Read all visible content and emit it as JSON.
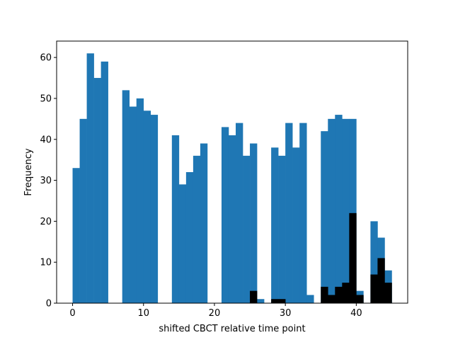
{
  "chart_data": {
    "type": "bar",
    "title": "",
    "xlabel": "shifted CBCT relative time point",
    "ylabel": "Frequency",
    "xlim": [
      -2.25,
      47.25
    ],
    "ylim": [
      0,
      64
    ],
    "bin_width": 1,
    "x_ticks": [
      0,
      10,
      20,
      30,
      40
    ],
    "y_ticks": [
      0,
      10,
      20,
      30,
      40,
      50,
      60
    ],
    "grid": false,
    "legend": "none",
    "series": [
      {
        "color": "#1f77b4",
        "bins": [
          {
            "x": 0,
            "value": 33
          },
          {
            "x": 1,
            "value": 45
          },
          {
            "x": 2,
            "value": 61
          },
          {
            "x": 3,
            "value": 55
          },
          {
            "x": 4,
            "value": 59
          },
          {
            "x": 7,
            "value": 52
          },
          {
            "x": 8,
            "value": 48
          },
          {
            "x": 9,
            "value": 50
          },
          {
            "x": 10,
            "value": 47
          },
          {
            "x": 11,
            "value": 46
          },
          {
            "x": 14,
            "value": 41
          },
          {
            "x": 15,
            "value": 29
          },
          {
            "x": 16,
            "value": 32
          },
          {
            "x": 17,
            "value": 36
          },
          {
            "x": 18,
            "value": 39
          },
          {
            "x": 21,
            "value": 43
          },
          {
            "x": 22,
            "value": 41
          },
          {
            "x": 23,
            "value": 44
          },
          {
            "x": 24,
            "value": 36
          },
          {
            "x": 25,
            "value": 39
          },
          {
            "x": 26,
            "value": 1
          },
          {
            "x": 28,
            "value": 38
          },
          {
            "x": 29,
            "value": 36
          },
          {
            "x": 30,
            "value": 44
          },
          {
            "x": 31,
            "value": 38
          },
          {
            "x": 32,
            "value": 44
          },
          {
            "x": 33,
            "value": 2
          },
          {
            "x": 35,
            "value": 42
          },
          {
            "x": 36,
            "value": 45
          },
          {
            "x": 37,
            "value": 46
          },
          {
            "x": 38,
            "value": 45
          },
          {
            "x": 39,
            "value": 45
          },
          {
            "x": 40,
            "value": 3
          },
          {
            "x": 42,
            "value": 20
          },
          {
            "x": 43,
            "value": 16
          },
          {
            "x": 44,
            "value": 8
          }
        ]
      },
      {
        "color": "#000000",
        "bins": [
          {
            "x": 25,
            "value": 3
          },
          {
            "x": 28,
            "value": 1
          },
          {
            "x": 29,
            "value": 1
          },
          {
            "x": 35,
            "value": 4
          },
          {
            "x": 36,
            "value": 2
          },
          {
            "x": 37,
            "value": 4
          },
          {
            "x": 38,
            "value": 5
          },
          {
            "x": 39,
            "value": 22
          },
          {
            "x": 40,
            "value": 2
          },
          {
            "x": 42,
            "value": 7
          },
          {
            "x": 43,
            "value": 11
          },
          {
            "x": 44,
            "value": 5
          }
        ]
      }
    ]
  }
}
